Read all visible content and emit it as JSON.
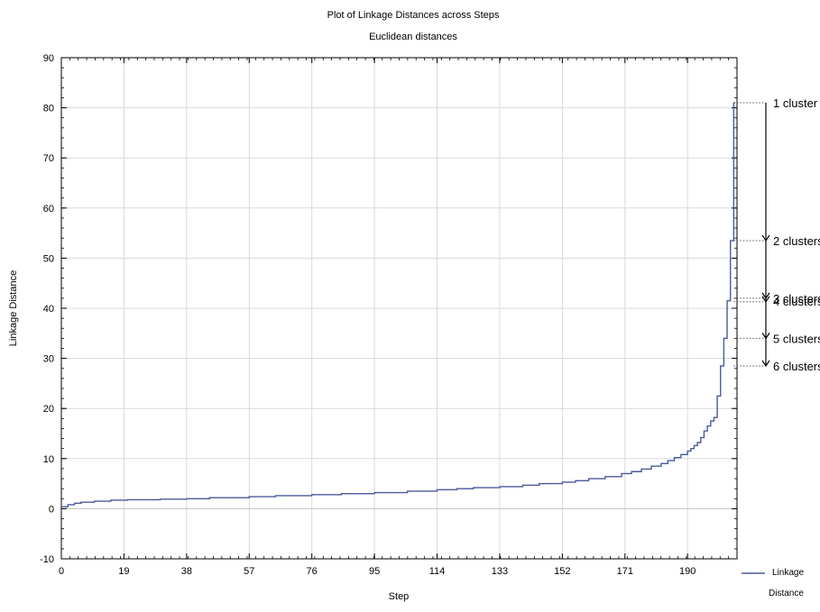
{
  "chart_data": {
    "type": "line",
    "title": "Plot of Linkage Distances across Steps",
    "subtitle": "Euclidean distances",
    "xlabel": "Step",
    "ylabel": "Linkage Distance",
    "xlim": [
      0,
      205
    ],
    "ylim": [
      -10,
      90
    ],
    "x_ticks": [
      0,
      19,
      38,
      57,
      76,
      95,
      114,
      133,
      152,
      171,
      190
    ],
    "y_ticks": [
      -10,
      0,
      10,
      20,
      30,
      40,
      50,
      60,
      70,
      80,
      90
    ],
    "grid": true,
    "legend_position": "bottom-right",
    "series": [
      {
        "name": "Linkage Distance",
        "color": "#4a5a9c",
        "step": true,
        "x": [
          0,
          2,
          4,
          6,
          10,
          15,
          20,
          30,
          38,
          45,
          57,
          65,
          76,
          85,
          95,
          105,
          114,
          120,
          125,
          133,
          140,
          145,
          152,
          156,
          160,
          165,
          170,
          173,
          176,
          179,
          182,
          184,
          186,
          188,
          190,
          191,
          192,
          193,
          194,
          195,
          196,
          197,
          198,
          199,
          200,
          201,
          202,
          203,
          204
        ],
        "values": [
          0.4,
          0.8,
          1.1,
          1.3,
          1.5,
          1.7,
          1.8,
          1.9,
          2.0,
          2.2,
          2.4,
          2.6,
          2.8,
          3.0,
          3.2,
          3.5,
          3.8,
          4.0,
          4.2,
          4.4,
          4.7,
          5.0,
          5.3,
          5.6,
          6.0,
          6.4,
          7.0,
          7.4,
          7.9,
          8.5,
          9.0,
          9.6,
          10.2,
          10.8,
          11.5,
          12.0,
          12.6,
          13.2,
          14.2,
          15.5,
          16.5,
          17.5,
          18.2,
          22.5,
          28.5,
          34.0,
          41.5,
          53.5,
          81.0
        ]
      }
    ],
    "annotations": [
      {
        "label": "1 cluster",
        "y": 81.0
      },
      {
        "label": "2 clusters",
        "y": 53.5
      },
      {
        "label": "3 clusters",
        "y": 42.0
      },
      {
        "label": "4 clusters",
        "y": 41.3
      },
      {
        "label": "5 clusters",
        "y": 34.0
      },
      {
        "label": "6 clusters",
        "y": 28.5
      }
    ]
  }
}
